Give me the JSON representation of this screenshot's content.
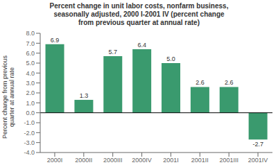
{
  "chart_data": {
    "type": "bar",
    "title": "Percent change in unit labor costs, nonfarm business,\nseasonally adjusted, 2000 I-2001 IV (percent change\nfrom previous quarter at annual rate)",
    "y_label": "Percent change from previous\nquarter at annual rate",
    "categories": [
      "2000I",
      "2000II",
      "2000III",
      "2000IV",
      "2001I",
      "2001II",
      "2001III",
      "2001IV"
    ],
    "values": [
      6.9,
      1.3,
      5.7,
      6.4,
      5.0,
      2.6,
      2.6,
      -2.7
    ],
    "value_labels": [
      "6.9",
      "1.3",
      "5.7",
      "6.4",
      "5.0",
      "2.6",
      "2.6",
      "-2.7"
    ],
    "color": "#3a9a6e",
    "ylim": [
      -4.0,
      8.0
    ],
    "yticks": [
      {
        "value": -4.0,
        "label": "-4.0"
      },
      {
        "value": -3.0,
        "label": "-3.0"
      },
      {
        "value": -2.0,
        "label": "-2.0"
      },
      {
        "value": -1.0,
        "label": "-1.0"
      },
      {
        "value": 0.0,
        "label": "0.0"
      },
      {
        "value": 1.0,
        "label": "1.0"
      },
      {
        "value": 2.0,
        "label": "2.0"
      },
      {
        "value": 3.0,
        "label": "3.0"
      },
      {
        "value": 4.0,
        "label": "4.0"
      },
      {
        "value": 5.0,
        "label": "5.0"
      },
      {
        "value": 6.0,
        "label": "6.0"
      },
      {
        "value": 7.0,
        "label": "7.0"
      },
      {
        "value": 8.0,
        "label": "8.0"
      }
    ],
    "grid": false,
    "data_labels": true
  }
}
